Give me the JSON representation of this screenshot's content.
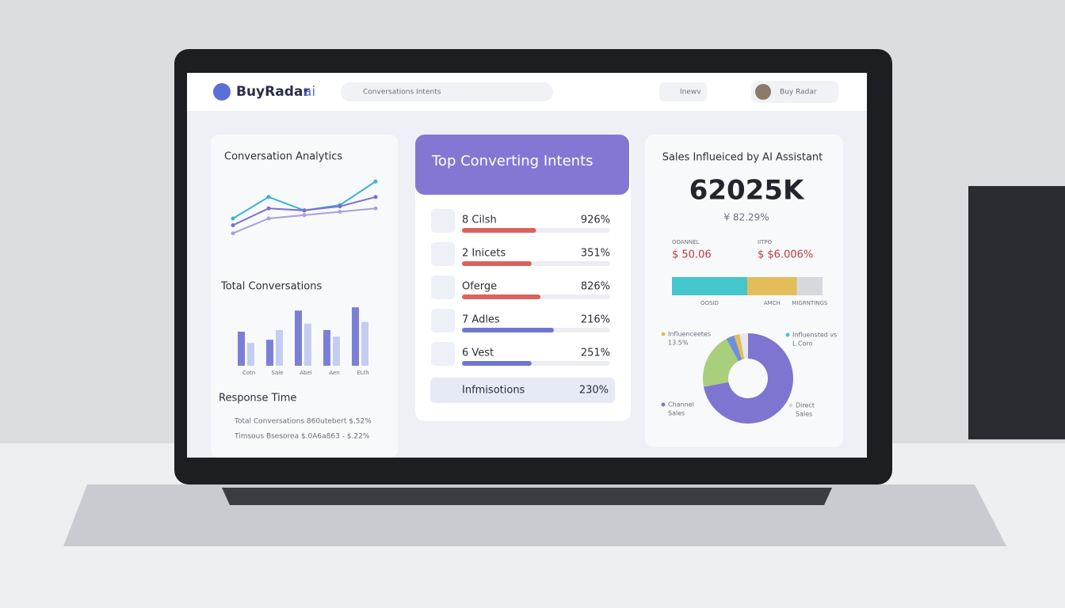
{
  "header": {
    "logo": "BuyRadar",
    "logo_suffix": "ai",
    "search_placeholder": "Conversations Intents",
    "user_button": "Inewv",
    "account_name": "Buy Radar"
  },
  "conversation_analytics": {
    "title": "Conversation Analytics",
    "chart": {
      "type": "line",
      "ylim": [
        0,
        100
      ],
      "series": [
        {
          "color": "#3bb3d0",
          "values": [
            40,
            72,
            52,
            60,
            95
          ]
        },
        {
          "color": "#7a6fcf",
          "values": [
            30,
            55,
            52,
            58,
            72
          ]
        },
        {
          "color": "#a8a0e0",
          "values": [
            18,
            40,
            45,
            50,
            55
          ]
        }
      ]
    }
  },
  "total_conversations": {
    "title": "Total Conversations",
    "chart": {
      "type": "bar",
      "categories": [
        "Cotn",
        "Sale",
        "Abel",
        "Aen",
        "ELth"
      ],
      "ylim": [
        0,
        80
      ],
      "series": [
        {
          "color": "#7c7fd6",
          "values": [
            42,
            32,
            68,
            44,
            72
          ]
        },
        {
          "color": "#c4cdf0",
          "values": [
            28,
            44,
            52,
            36,
            54
          ]
        }
      ]
    }
  },
  "response_time": {
    "title": "Response Time",
    "rows": [
      "Total Conversations 860utebert $.52%",
      "Timsous Bsesorea $.0A6a863 - $.22%"
    ]
  },
  "top_intents": {
    "title": "Top Converting Intents",
    "items": [
      {
        "label": "8 Cilsh",
        "value": "926%",
        "progress": 50,
        "color": "#d9625e"
      },
      {
        "label": "2 Inicets",
        "value": "351%",
        "progress": 47,
        "color": "#d9625e"
      },
      {
        "label": "Oferge",
        "value": "826%",
        "progress": 53,
        "color": "#d9625e"
      },
      {
        "label": "7 Adles",
        "value": "216%",
        "progress": 62,
        "color": "#6f78d0"
      },
      {
        "label": "6 Vest",
        "value": "251%",
        "progress": 47,
        "color": "#6f78d0"
      }
    ],
    "footer": {
      "label": "Infmisotions",
      "value": "230%"
    }
  },
  "sales": {
    "title": "Sales Influeiced by AI Assistant",
    "value": "62025K",
    "change": "¥ 82.29%",
    "metrics": [
      {
        "label": "OOANNEL",
        "value": "$ 50.06"
      },
      {
        "label": "IITPO",
        "value": "$ $6.006%"
      }
    ],
    "bar": [
      {
        "label": "OOSID",
        "value": 50,
        "color": "#45c6cc"
      },
      {
        "label": "AMCH",
        "value": 33,
        "color": "#e2bd5a"
      },
      {
        "label": "MIGRNTINGS",
        "value": 17,
        "color": "#d6d8de"
      }
    ],
    "donut": [
      {
        "value": 72,
        "color": "#7d75cf"
      },
      {
        "value": 20,
        "color": "#a8cf7c"
      },
      {
        "value": 3,
        "color": "#6f8fd8"
      },
      {
        "value": 2,
        "color": "#e2bd5a"
      },
      {
        "value": 3,
        "color": "#e6e6ec"
      }
    ],
    "legend": [
      [
        "Influenceetes",
        "13.5%"
      ],
      [
        "Influensted vs",
        "L Coro"
      ],
      [
        "Channel",
        "Sales"
      ],
      [
        "Direct",
        "Sales"
      ]
    ]
  }
}
